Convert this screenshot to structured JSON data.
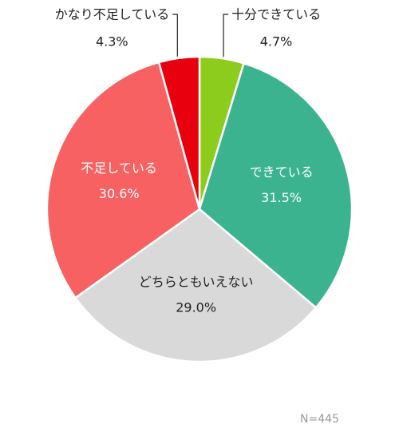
{
  "chart_data": {
    "type": "pie",
    "start": "12 o'clock",
    "direction": "clockwise",
    "slices": [
      {
        "label": "十分できている",
        "value": 4.7,
        "value_text": "4.7%",
        "color": "#8ccc1d",
        "label_position": "outside",
        "label_color": "#222222"
      },
      {
        "label": "できている",
        "value": 31.5,
        "value_text": "31.5%",
        "color": "#3bb38f",
        "label_position": "inside",
        "label_color": "#ffffff"
      },
      {
        "label": "どちらともいえない",
        "value": 29.0,
        "value_text": "29.0%",
        "color": "#d9d9d9",
        "label_position": "inside",
        "label_color": "#222222"
      },
      {
        "label": "不足している",
        "value": 30.6,
        "value_text": "30.6%",
        "color": "#f86161",
        "label_position": "inside",
        "label_color": "#ffffff"
      },
      {
        "label": "かなり不足している",
        "value": 4.3,
        "value_text": "4.3%",
        "color": "#e8000f",
        "label_position": "outside",
        "label_color": "#222222"
      }
    ],
    "legend": "none",
    "title": ""
  },
  "footnote": "N=445"
}
